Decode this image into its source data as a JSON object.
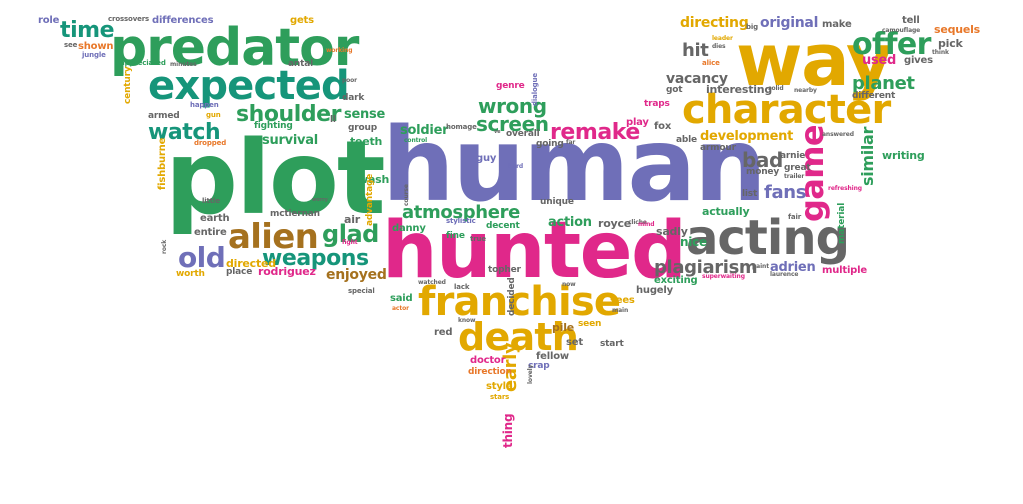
{
  "palette": {
    "green": "#2e9e5b",
    "teal": "#16957a",
    "purple": "#6f6fb8",
    "magenta": "#e0288a",
    "gold": "#e2a800",
    "orange": "#e8782a",
    "brown": "#a5711e",
    "gray": "#666666",
    "lime": "#8bbf2f",
    "blue": "#3e79c4",
    "pink": "#d94d8a"
  },
  "words": {
    "plot": "plot",
    "human": "human",
    "hunted": "hunted",
    "predator": "predator",
    "way": "way",
    "character": "character",
    "expected": "expected",
    "acting": "acting",
    "franchise": "franchise",
    "death": "death",
    "alien": "alien",
    "game": "game",
    "offer": "offer",
    "shoulder": "shoulder",
    "watch": "watch",
    "weapons": "weapons",
    "old": "old",
    "glad": "glad",
    "atmosphere": "atmosphere",
    "remake": "remake",
    "wrong": "wrong",
    "screen": "screen",
    "time": "time",
    "plagiarism": "plagiarism",
    "planet": "planet",
    "similar": "similar",
    "bad": "bad",
    "fans": "fans",
    "hit": "hit",
    "vacancy": "vacancy",
    "development": "development",
    "directing": "directing",
    "original": "original",
    "early": "early",
    "soldier": "soldier",
    "survival": "survival",
    "sense": "sense",
    "enjoyed": "enjoyed",
    "rodriguez": "rodriguez",
    "directed": "directed",
    "adrien": "adrien",
    "used": "used",
    "differences": "differences",
    "crossovers": "crossovers",
    "role": "role",
    "gets": "gets",
    "make": "make",
    "tell": "tell",
    "sequels": "sequels",
    "pick": "pick",
    "gives": "gives",
    "big": "big",
    "leader": "leader",
    "camouflage": "camouflage",
    "think": "think",
    "different": "different",
    "interesting": "interesting",
    "got": "got",
    "alice": "alice",
    "traps": "traps",
    "play": "play",
    "fox": "fox",
    "able": "able",
    "armour": "armour",
    "arnie": "arnie",
    "great": "great",
    "money": "money",
    "trailer": "trailer",
    "answered": "answered",
    "writing": "writing",
    "material": "material",
    "refreshing": "refreshing",
    "list": "list",
    "actually": "actually",
    "fair": "fair",
    "multiple": "multiple",
    "laurence": "laurence",
    "paint": "paint",
    "superwaiting": "superwaiting",
    "nice": "nice",
    "exciting": "exciting",
    "hugely": "hugely",
    "sadly": "sadly",
    "royce": "royce",
    "action": "action",
    "unique": "unique",
    "decent": "decent",
    "danny": "danny",
    "topher": "topher",
    "decided": "decided",
    "sees": "sees",
    "pile": "pile",
    "seen": "seen",
    "set": "set",
    "red": "red",
    "doctor": "doctor",
    "direction": "direction",
    "style": "style",
    "stars": "stars",
    "thing": "thing",
    "fellow": "fellow",
    "crap": "crap",
    "lovely": "lovely",
    "start": "start",
    "fine": "fine",
    "genre": "genre",
    "dialogue": "dialogue",
    "homage": "homage",
    "control": "control",
    "overall": "overall",
    "going": "going",
    "far": "far",
    "guy": "guy",
    "hard": "hard",
    "stylistic": "stylistic",
    "true": "true",
    "lack": "lack",
    "watched": "watched",
    "know": "know",
    "now": "now",
    "actor": "actor",
    "special": "special",
    "said": "said",
    "air": "air",
    "wash": "wash",
    "advantage": "advantage",
    "teeth": "teeth",
    "group": "group",
    "dark": "dark",
    "poor": "poor",
    "fighting": "fighting",
    "gun": "gun",
    "happen": "happen",
    "armed": "armed",
    "dropped": "dropped",
    "fishburne": "fishburne",
    "little": "little",
    "earth": "earth",
    "mctiernan": "mctiernan",
    "entire": "entire",
    "place": "place",
    "worth": "worth",
    "rock": "rock",
    "fight": "fight",
    "worry": "worry",
    "century": "century",
    "appreciated": "appreciated",
    "minutes": "minutes",
    "shown": "shown",
    "jungle": "jungle",
    "see": "see",
    "antal": "antal",
    "working": "working",
    "cloak": "cloak",
    "course": "course",
    "ll": "ll",
    "ride": "ride",
    "main": "main",
    "cliche": "cliche",
    "mind": "mind",
    "solid": "solid",
    "opens": "opens",
    "ve": "ve",
    "nearby": "nearby",
    "rodriguez2": "rodriguez",
    "dies": "dies"
  }
}
